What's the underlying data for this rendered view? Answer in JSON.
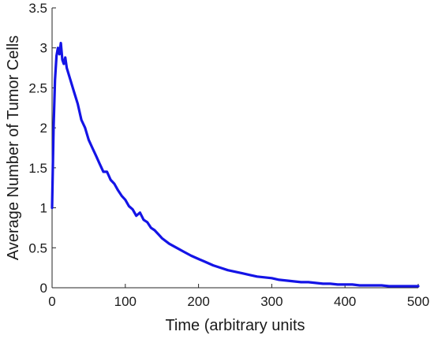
{
  "chart_data": {
    "type": "line",
    "xlabel": "Time (arbitrary units",
    "ylabel": "Average Number of Tumor Cells",
    "xlim": [
      0,
      500
    ],
    "ylim": [
      0,
      3.5
    ],
    "xticks": [
      0,
      100,
      200,
      300,
      400,
      500
    ],
    "yticks": [
      0,
      0.5,
      1,
      1.5,
      2,
      2.5,
      3,
      3.5
    ],
    "xtick_labels": [
      "0",
      "100",
      "200",
      "300",
      "400",
      "500"
    ],
    "ytick_labels": [
      "0",
      "0.5",
      "1",
      "1.5",
      "2",
      "2.5",
      "3",
      "3.5"
    ],
    "grid": false,
    "box": "left-bottom",
    "color": "#1414e6",
    "series": [
      {
        "x": [
          0,
          2,
          4,
          6,
          8,
          10,
          12,
          14,
          16,
          18,
          20,
          25,
          30,
          35,
          40,
          45,
          50,
          55,
          60,
          65,
          70,
          75,
          80,
          85,
          90,
          95,
          100,
          105,
          110,
          115,
          120,
          125,
          130,
          135,
          140,
          145,
          150,
          160,
          170,
          180,
          190,
          200,
          210,
          220,
          230,
          240,
          250,
          260,
          270,
          280,
          290,
          300,
          310,
          320,
          330,
          340,
          350,
          360,
          370,
          380,
          390,
          400,
          410,
          420,
          430,
          440,
          450,
          460,
          470,
          480,
          490,
          500
        ],
        "y": [
          1.0,
          2.0,
          2.6,
          2.9,
          3.0,
          2.92,
          3.06,
          2.85,
          2.8,
          2.88,
          2.75,
          2.6,
          2.45,
          2.3,
          2.1,
          2.0,
          1.85,
          1.75,
          1.65,
          1.55,
          1.45,
          1.45,
          1.35,
          1.3,
          1.22,
          1.15,
          1.1,
          1.02,
          0.98,
          0.9,
          0.94,
          0.85,
          0.82,
          0.75,
          0.72,
          0.67,
          0.62,
          0.55,
          0.5,
          0.45,
          0.4,
          0.36,
          0.32,
          0.28,
          0.25,
          0.22,
          0.2,
          0.18,
          0.16,
          0.14,
          0.13,
          0.12,
          0.1,
          0.09,
          0.08,
          0.07,
          0.07,
          0.06,
          0.05,
          0.05,
          0.04,
          0.04,
          0.04,
          0.03,
          0.03,
          0.03,
          0.03,
          0.02,
          0.02,
          0.02,
          0.02,
          0.02
        ]
      }
    ]
  }
}
